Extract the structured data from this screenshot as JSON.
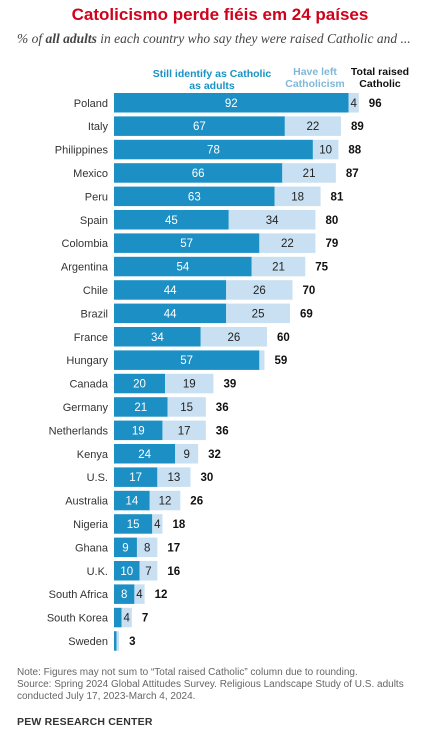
{
  "title": "Catolicismo perde fiéis em 24 países",
  "subtitle": {
    "before": "% of ",
    "bold": "all adults",
    "after": " in each country who say they were raised Catholic and ..."
  },
  "legend": {
    "still": "Still identify as Catholic as adults",
    "left": "Have left Catholicism",
    "total": "Total raised Catholic"
  },
  "colors": {
    "still": "#1c8fc4",
    "left": "#c8e0f2",
    "title": "#d0021b"
  },
  "chart_data": {
    "type": "bar",
    "orientation": "horizontal",
    "stacked": true,
    "categories": [
      "Poland",
      "Italy",
      "Philippines",
      "Mexico",
      "Peru",
      "Spain",
      "Colombia",
      "Argentina",
      "Chile",
      "Brazil",
      "France",
      "Hungary",
      "Canada",
      "Germany",
      "Netherlands",
      "Kenya",
      "U.S.",
      "Australia",
      "Nigeria",
      "Ghana",
      "U.K.",
      "South Africa",
      "South Korea",
      "Sweden"
    ],
    "series": [
      {
        "name": "Still identify as Catholic as adults",
        "values": [
          92,
          67,
          78,
          66,
          63,
          45,
          57,
          54,
          44,
          44,
          34,
          57,
          20,
          21,
          19,
          24,
          17,
          14,
          15,
          9,
          10,
          8,
          3,
          1
        ]
      },
      {
        "name": "Have left Catholicism",
        "values": [
          4,
          22,
          10,
          21,
          18,
          34,
          22,
          21,
          26,
          25,
          26,
          2,
          19,
          15,
          17,
          9,
          13,
          12,
          4,
          8,
          7,
          4,
          4,
          1
        ]
      }
    ],
    "still_labels": [
      "92",
      "67",
      "78",
      "66",
      "63",
      "45",
      "57",
      "54",
      "44",
      "44",
      "34",
      "57",
      "20",
      "21",
      "19",
      "24",
      "17",
      "14",
      "15",
      "9",
      "10",
      "8",
      "",
      ""
    ],
    "left_labels": [
      "4",
      "22",
      "10",
      "21",
      "18",
      "34",
      "22",
      "21",
      "26",
      "25",
      "26",
      "",
      "19",
      "15",
      "17",
      "9",
      "13",
      "12",
      "4",
      "8",
      "7",
      "4",
      "4",
      ""
    ],
    "totals": [
      "96",
      "89",
      "88",
      "87",
      "81",
      "80",
      "79",
      "75",
      "70",
      "69",
      "60",
      "59",
      "39",
      "36",
      "36",
      "32",
      "30",
      "26",
      "18",
      "17",
      "16",
      "12",
      "7",
      "3"
    ]
  },
  "note": "Note: Figures may not sum to “Total raised Catholic” column due to rounding.",
  "source": "Source: Spring 2024 Global Attitudes Survey. Religious Landscape Study of U.S. adults conducted July 17, 2023-March 4, 2024.",
  "credit": "PEW RESEARCH CENTER"
}
